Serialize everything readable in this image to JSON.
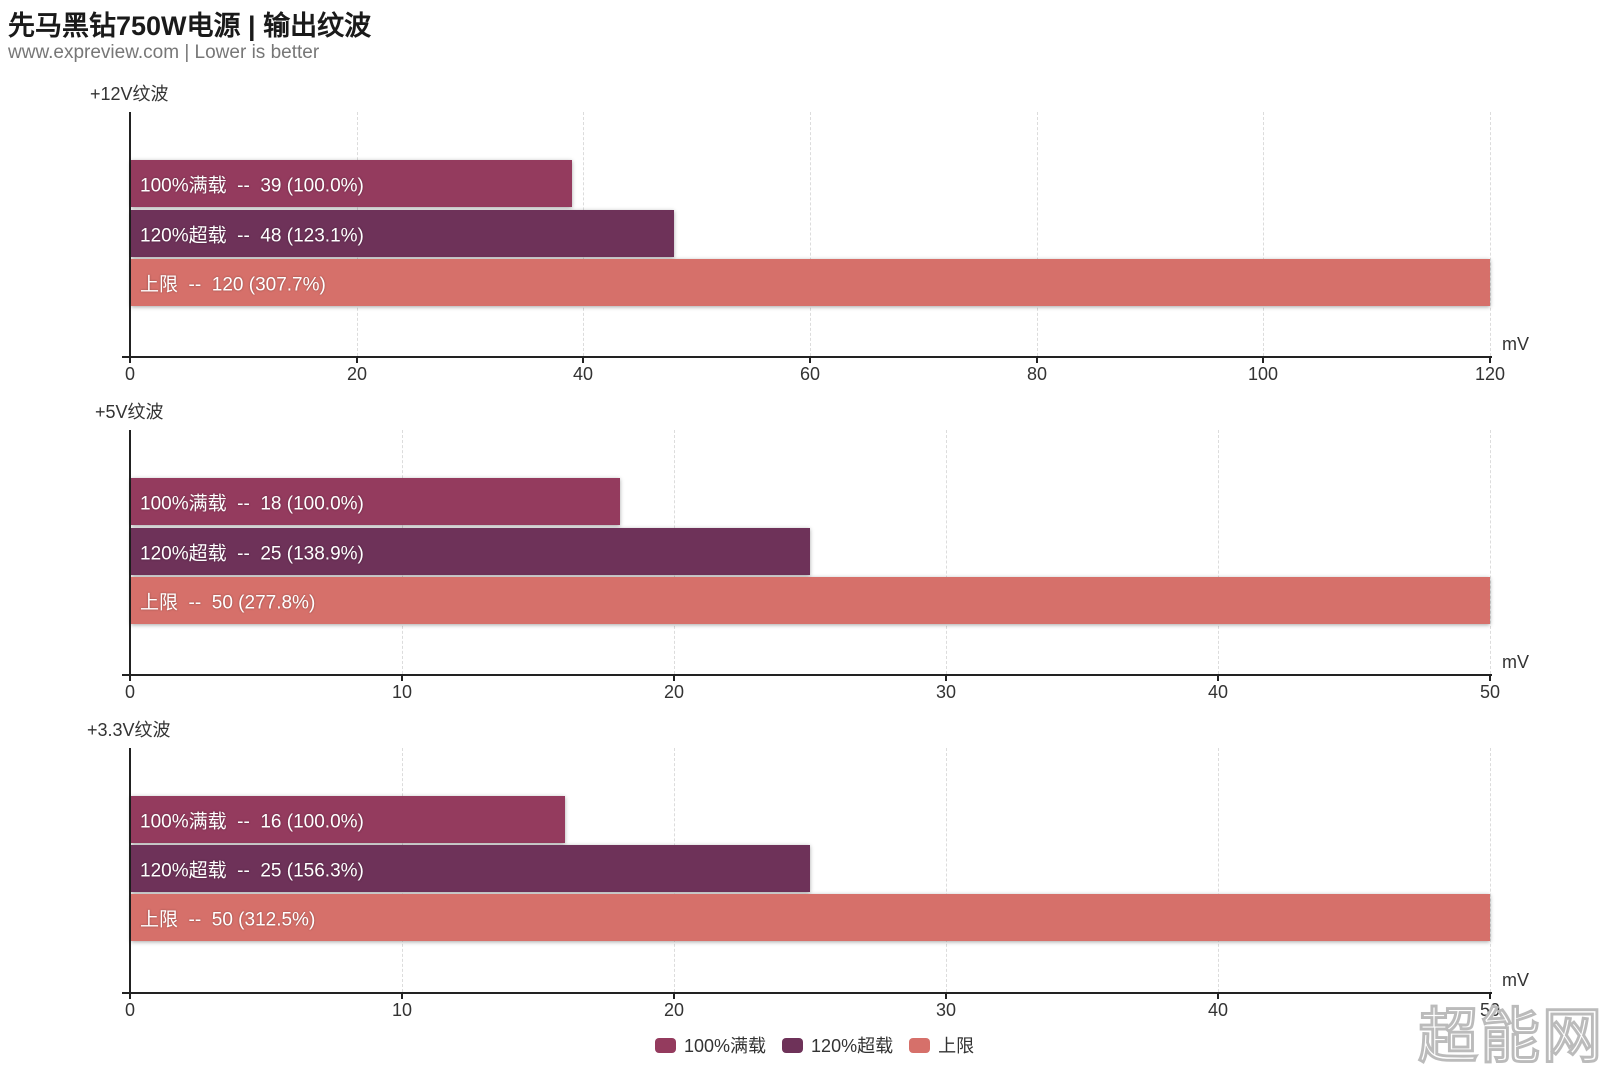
{
  "header": {
    "title": "先马黑钻750W电源 | 输出纹波",
    "subtitle": "www.expreview.com | Lower is better"
  },
  "colors": {
    "full_load": "#943B5E",
    "overload": "#6E3259",
    "limit": "#D6706A"
  },
  "legend": [
    {
      "label": "100%满载",
      "color": "#943B5E"
    },
    {
      "label": "120%超载",
      "color": "#6E3259"
    },
    {
      "label": "上限",
      "color": "#D6706A"
    }
  ],
  "watermark": "超能网",
  "chart_data": [
    {
      "type": "bar",
      "orientation": "horizontal",
      "title": "+12V纹波",
      "xlabel": "mV",
      "xlim": [
        0,
        120
      ],
      "ticks": [
        0,
        20,
        40,
        60,
        80,
        100,
        120
      ],
      "grid": true,
      "categories": [
        "100%满载",
        "120%超载",
        "上限"
      ],
      "values": [
        39,
        48,
        120
      ],
      "labels": [
        "100%满载  --  39 (100.0%)",
        "120%超载  --  48 (123.1%)",
        "上限  --  120 (307.7%)"
      ],
      "percent": [
        100.0,
        123.1,
        307.7
      ]
    },
    {
      "type": "bar",
      "orientation": "horizontal",
      "title": "+5V纹波",
      "xlabel": "mV",
      "xlim": [
        0,
        50
      ],
      "ticks": [
        0,
        10,
        20,
        30,
        40,
        50
      ],
      "grid": true,
      "categories": [
        "100%满载",
        "120%超载",
        "上限"
      ],
      "values": [
        18,
        25,
        50
      ],
      "labels": [
        "100%满载  --  18 (100.0%)",
        "120%超载  --  25 (138.9%)",
        "上限  --  50 (277.8%)"
      ],
      "percent": [
        100.0,
        138.9,
        277.8
      ]
    },
    {
      "type": "bar",
      "orientation": "horizontal",
      "title": "+3.3V纹波",
      "xlabel": "mV",
      "xlim": [
        0,
        50
      ],
      "ticks": [
        0,
        10,
        20,
        30,
        40,
        50
      ],
      "grid": true,
      "categories": [
        "100%满载",
        "120%超载",
        "上限"
      ],
      "values": [
        16,
        25,
        50
      ],
      "labels": [
        "100%满载  --  16 (100.0%)",
        "120%超载  --  25 (156.3%)",
        "上限  --  50 (312.5%)"
      ],
      "percent": [
        100.0,
        156.3,
        312.5
      ]
    }
  ]
}
